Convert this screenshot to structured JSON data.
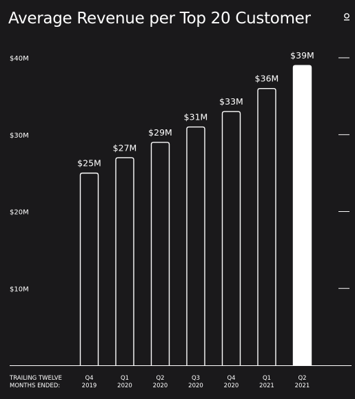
{
  "page": {
    "title": "Average Revenue per Top 20 Customer",
    "corner_icon": "slide-indicator-icon",
    "background": "#1a191b"
  },
  "chart_data": {
    "type": "bar",
    "title": "Average Revenue per Top 20 Customer",
    "x_axis_caption": [
      "TRAILING TWELVE",
      "MONTHS ENDED:"
    ],
    "categories": [
      [
        "Q4",
        "2019"
      ],
      [
        "Q1",
        "2020"
      ],
      [
        "Q2",
        "2020"
      ],
      [
        "Q3",
        "2020"
      ],
      [
        "Q4",
        "2020"
      ],
      [
        "Q1",
        "2021"
      ],
      [
        "Q2",
        "2021"
      ]
    ],
    "values": [
      25,
      27,
      29,
      31,
      33,
      36,
      39
    ],
    "data_labels": [
      "$25M",
      "$27M",
      "$29M",
      "$31M",
      "$33M",
      "$36M",
      "$39M"
    ],
    "y_ticks": [
      {
        "value": 10,
        "label": "$10M"
      },
      {
        "value": 20,
        "label": "$20M"
      },
      {
        "value": 30,
        "label": "$30M"
      },
      {
        "value": 40,
        "label": "$40M"
      }
    ],
    "ylim": [
      0,
      40
    ],
    "highlight_index": 6,
    "colors": {
      "bar_fill": "#1a191b",
      "bar_stroke": "#ffffff",
      "highlight_fill": "#ffffff",
      "text": "#ffffff"
    }
  }
}
